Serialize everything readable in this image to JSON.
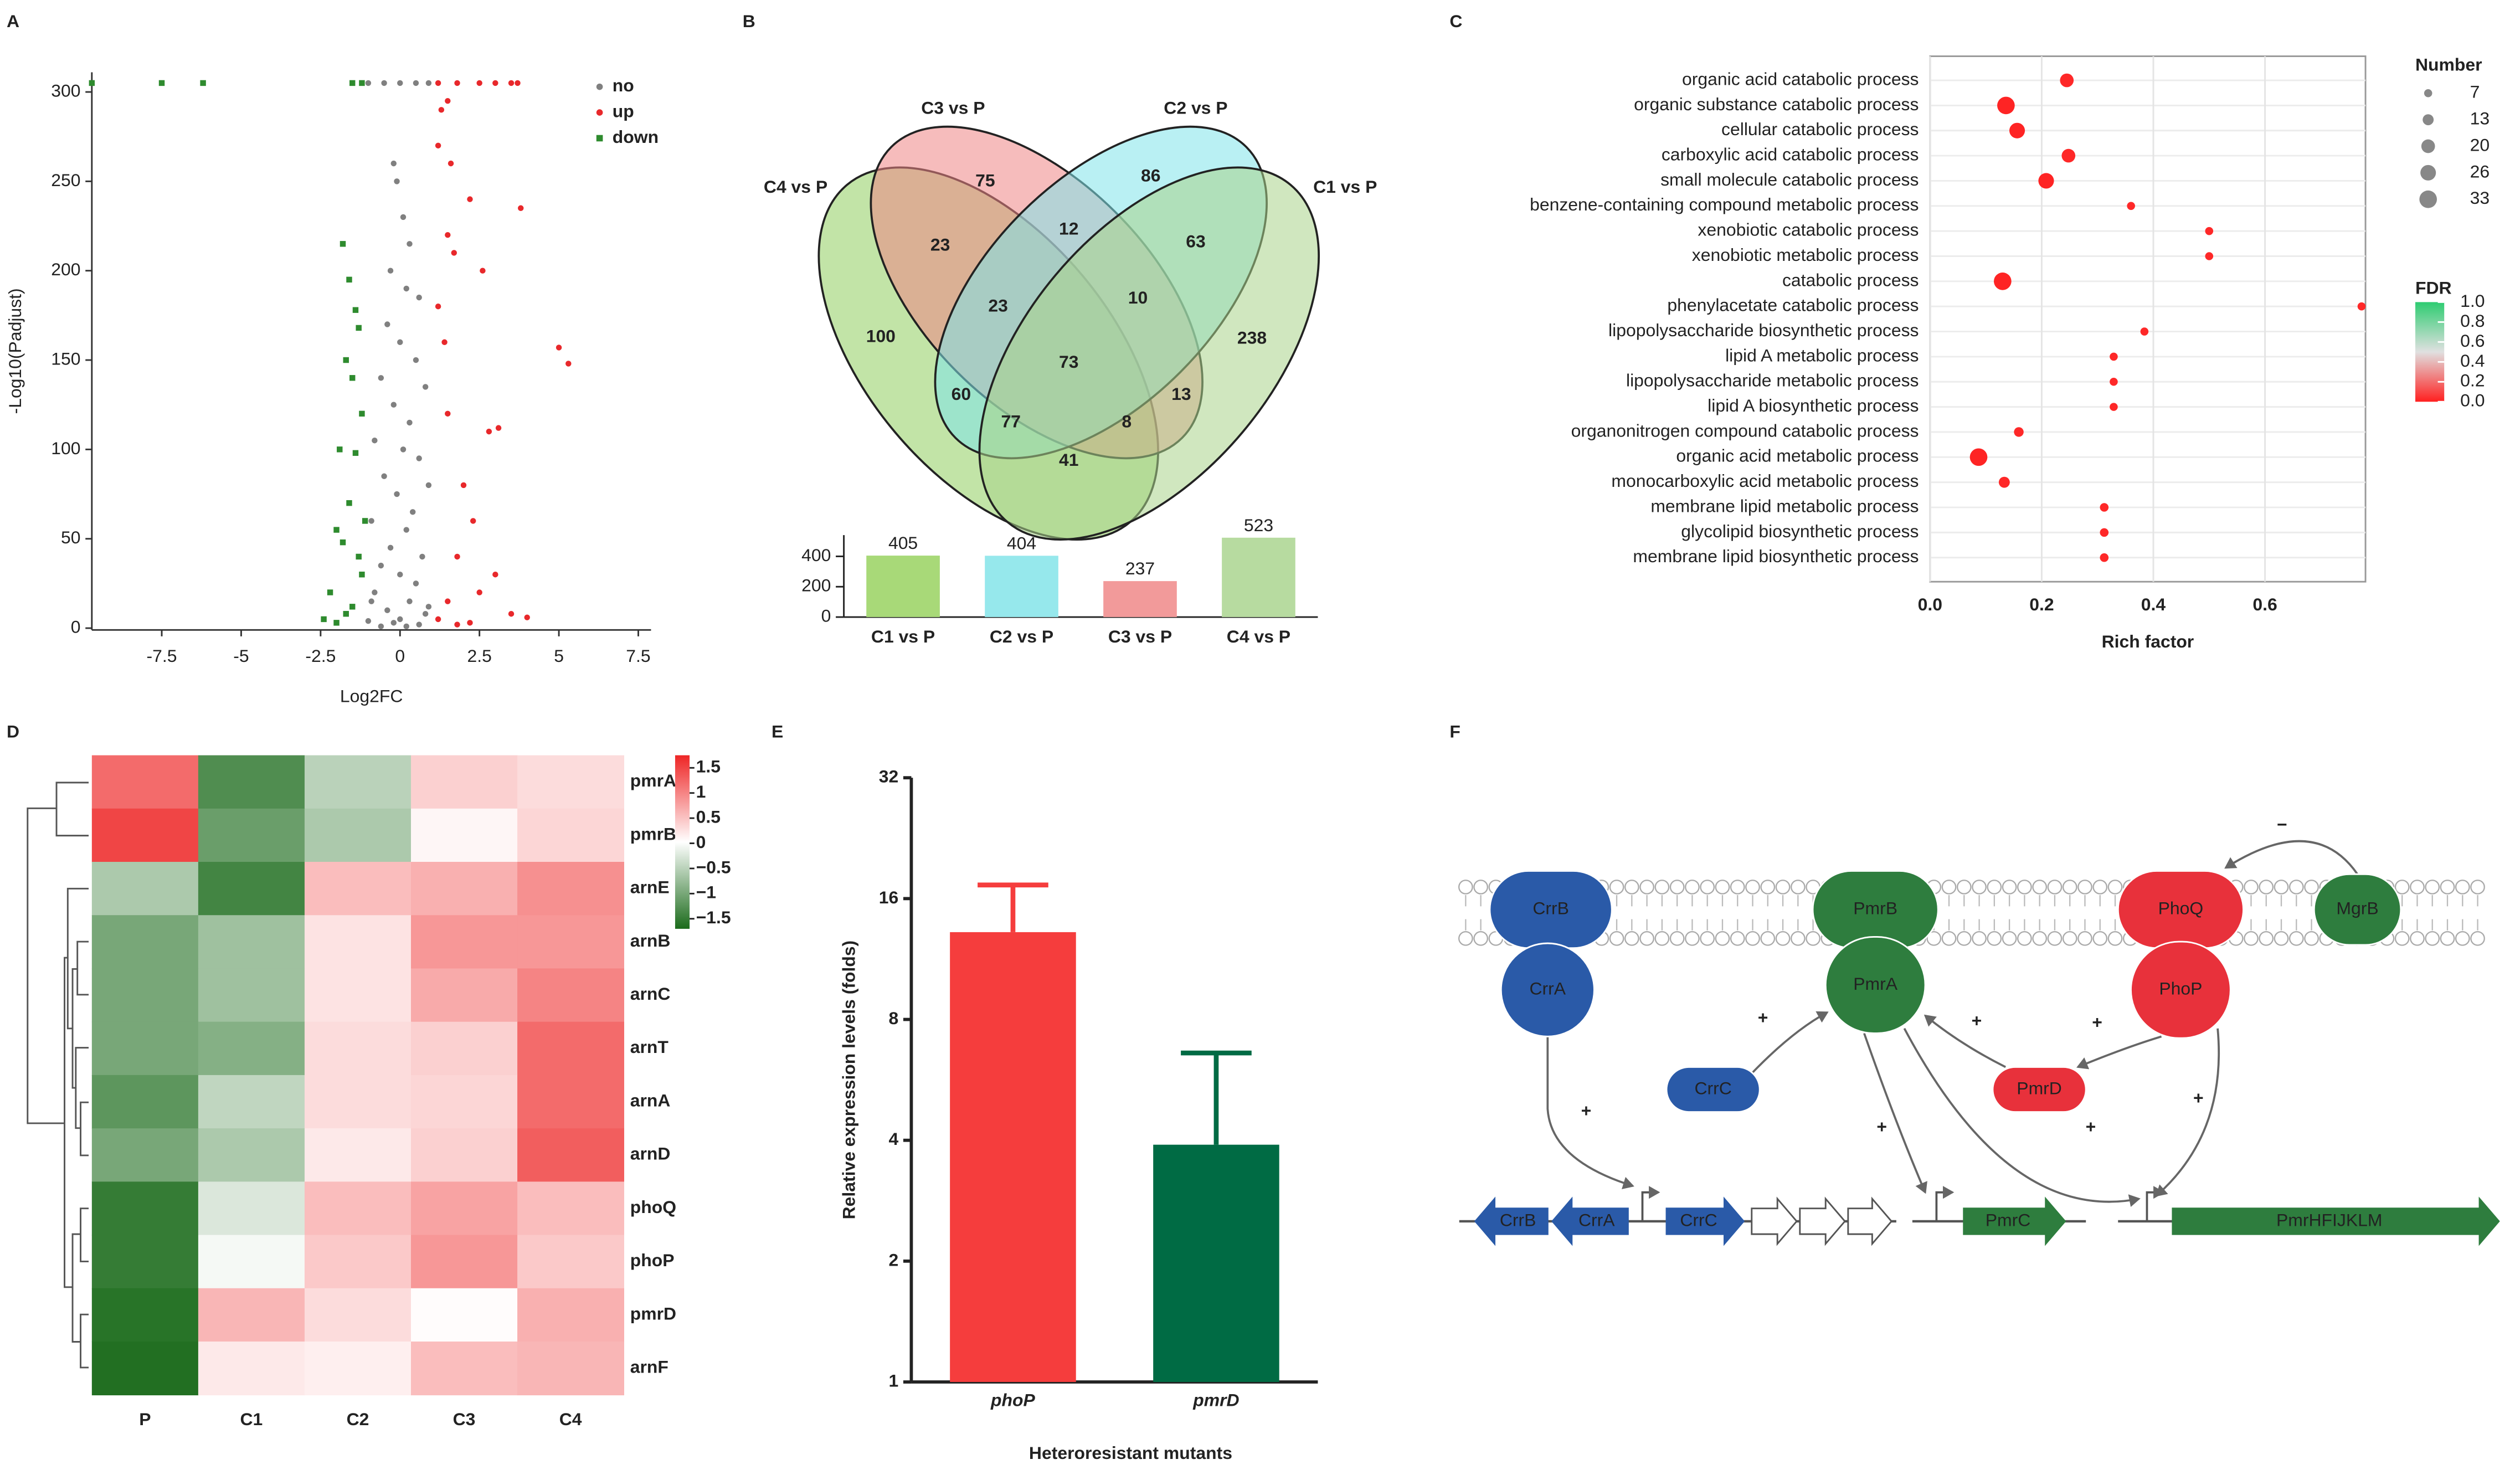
{
  "panels": [
    "A",
    "B",
    "C",
    "D",
    "E",
    "F"
  ],
  "chart_data": [
    {
      "type": "scatter",
      "xlabel": "Log2FC",
      "ylabel": "-Log10(Padjust)",
      "xlim": [
        -9.7,
        7.9
      ],
      "ylim": [
        -1,
        311
      ],
      "xticks": [
        -7.5,
        -5,
        -2.5,
        0,
        2.5,
        5,
        7.5
      ],
      "yticks": [
        0,
        50,
        100,
        150,
        200,
        250,
        300
      ],
      "legend": "upper right",
      "series": [
        {
          "name": "no",
          "color": "#808080",
          "marker": "circle",
          "x": [
            0,
            -0.5,
            0.5,
            -1,
            0.9,
            -0.2,
            -0.1,
            0.1,
            0.3,
            -0.3,
            0.2,
            0.6,
            -0.4,
            0,
            0.5,
            -0.6,
            0.8,
            -0.2,
            0.3,
            -0.8,
            0.1,
            0.6,
            -0.5,
            0.9,
            -0.1,
            0.4,
            -0.9,
            0.2,
            -0.3,
            0.7,
            -0.6,
            0,
            0.5,
            -0.8,
            0.3,
            -0.4,
            0.8,
            0,
            -0.2,
            0.6,
            -1.0,
            0.2,
            -0.6,
            0.9,
            -0.9
          ],
          "y": [
            305,
            305,
            305,
            305,
            305,
            260,
            250,
            230,
            215,
            200,
            190,
            185,
            170,
            160,
            150,
            140,
            135,
            125,
            115,
            105,
            100,
            95,
            85,
            80,
            75,
            65,
            60,
            55,
            45,
            40,
            35,
            30,
            25,
            20,
            15,
            10,
            8,
            5,
            3,
            2,
            4,
            1,
            1,
            12,
            15
          ]
        },
        {
          "name": "up",
          "color": "#e8282b",
          "marker": "circle",
          "x": [
            1.2,
            1.8,
            2.5,
            3.0,
            3.5,
            3.7,
            1.5,
            1.3,
            1.2,
            1.6,
            2.2,
            3.8,
            1.5,
            1.7,
            2.6,
            1.2,
            5.0,
            5.3,
            1.4,
            2.8,
            3.1,
            1.5,
            2.0,
            2.3,
            1.8,
            3.0,
            2.5,
            3.5,
            1.2,
            1.8,
            2.2,
            4.0,
            1.5
          ],
          "y": [
            305,
            305,
            305,
            305,
            305,
            305,
            295,
            290,
            270,
            260,
            240,
            235,
            220,
            210,
            200,
            180,
            157,
            148,
            160,
            110,
            112,
            120,
            80,
            60,
            40,
            30,
            20,
            8,
            5,
            2,
            3,
            6,
            15
          ]
        },
        {
          "name": "down",
          "color": "#2e8b2e",
          "marker": "square",
          "x": [
            -9.7,
            -7.5,
            -6.2,
            -1.5,
            -1.2,
            -1.8,
            -1.6,
            -1.4,
            -1.3,
            -1.7,
            -1.5,
            -1.2,
            -1.9,
            -1.4,
            -1.6,
            -2.0,
            -1.8,
            -1.3,
            -2.2,
            -2.4,
            -2.0,
            -1.7,
            -1.5,
            -1.2,
            -1.1
          ],
          "y": [
            305,
            305,
            305,
            305,
            305,
            215,
            195,
            178,
            168,
            150,
            140,
            120,
            100,
            98,
            70,
            55,
            48,
            40,
            20,
            5,
            3,
            8,
            12,
            30,
            60
          ]
        }
      ]
    },
    {
      "type": "venn",
      "sets": [
        {
          "name": "C4 vs P",
          "color": "#8fce5e"
        },
        {
          "name": "C3 vs P",
          "color": "#ef8585"
        },
        {
          "name": "C2 vs P",
          "color": "#7fe3ea"
        },
        {
          "name": "C1 vs P",
          "color": "#a9d38a"
        }
      ],
      "regions": [
        75,
        86,
        23,
        12,
        63,
        100,
        23,
        10,
        238,
        73,
        60,
        13,
        77,
        8,
        41
      ]
    },
    {
      "type": "bar",
      "categories": [
        "C1 vs P",
        "C2 vs P",
        "C3 vs P",
        "C4 vs P"
      ],
      "values": [
        405,
        404,
        237,
        523
      ],
      "colors": [
        "#a8d978",
        "#96e8ec",
        "#f29a9a",
        "#b7dba0"
      ],
      "ylim": [
        0,
        540
      ],
      "yticks": [
        0,
        200,
        400
      ],
      "show_values": true
    },
    {
      "type": "bubble",
      "categories": [
        "organic acid catabolic process",
        "organic substance catabolic process",
        "cellular catabolic process",
        "carboxylic acid catabolic process",
        "small molecule catabolic process",
        "benzene-containing compound metabolic process",
        "xenobiotic catabolic process",
        "xenobiotic metabolic process",
        "catabolic process",
        "phenylacetate catabolic process",
        "lipopolysaccharide biosynthetic process",
        "lipid A metabolic process",
        "lipopolysaccharide metabolic process",
        "lipid A biosynthetic process",
        "organonitrogen compound catabolic process",
        "organic acid metabolic process",
        "monocarboxylic acid metabolic process",
        "membrane lipid metabolic process",
        "glycolipid biosynthetic process",
        "membrane lipid biosynthetic process"
      ],
      "values": [
        0.245,
        0.136,
        0.156,
        0.248,
        0.208,
        0.36,
        0.5,
        0.5,
        0.13,
        0.773,
        0.384,
        0.329,
        0.329,
        0.329,
        0.159,
        0.087,
        0.133,
        0.312,
        0.312,
        0.312
      ],
      "sizes": [
        20,
        33,
        26,
        20,
        26,
        7,
        7,
        7,
        33,
        7,
        7,
        7,
        7,
        7,
        10,
        33,
        13,
        8,
        8,
        8
      ],
      "fdr": [
        0.02,
        0.01,
        0.01,
        0.02,
        0.01,
        0.02,
        0.02,
        0.02,
        0.01,
        0.02,
        0.02,
        0.02,
        0.02,
        0.02,
        0.02,
        0.01,
        0.02,
        0.02,
        0.02,
        0.02
      ],
      "xlim": [
        0,
        0.78
      ],
      "xticks": [
        {
          "value": 0,
          "label": "0.0"
        },
        0.2,
        0.4,
        0.6
      ],
      "xlabel": "Rich factor",
      "size_title": "Number",
      "size_legend": [
        7,
        13,
        20,
        26,
        33
      ],
      "color_title": "FDR",
      "clim": [
        0,
        1
      ],
      "color_scale": [
        "#ff2020",
        "#e0e0e0",
        "#2ecc71"
      ],
      "colorbar_ticks": [
        {
          "value": 1,
          "label": "1.0"
        },
        0.8,
        0.6,
        0.4,
        0.2,
        {
          "value": 0,
          "label": "0.0"
        }
      ]
    },
    {
      "type": "heatmap",
      "rows": [
        "pmrA",
        "pmrB",
        "arnE",
        "arnB",
        "arnC",
        "arnT",
        "arnA",
        "arnD",
        "phoQ",
        "phoP",
        "pmrD",
        "arnF"
      ],
      "columns": [
        "P",
        "C1",
        "C2",
        "C3",
        "C4"
      ],
      "values": [
        [
          1.2,
          -1.3,
          -0.5,
          0.4,
          0.3
        ],
        [
          1.5,
          -1.1,
          -0.6,
          0.1,
          0.35
        ],
        [
          -0.6,
          -1.4,
          0.55,
          0.65,
          0.9
        ],
        [
          -1.0,
          -0.7,
          0.25,
          0.85,
          0.85
        ],
        [
          -1.0,
          -0.7,
          0.25,
          0.7,
          1.0
        ],
        [
          -1.0,
          -0.9,
          0.3,
          0.4,
          1.2
        ],
        [
          -1.2,
          -0.45,
          0.3,
          0.35,
          1.2
        ],
        [
          -1.0,
          -0.6,
          0.2,
          0.4,
          1.3
        ],
        [
          -1.5,
          -0.25,
          0.55,
          0.75,
          0.55
        ],
        [
          -1.5,
          -0.05,
          0.45,
          0.85,
          0.45
        ],
        [
          -1.6,
          0.6,
          0.3,
          0.05,
          0.65
        ],
        [
          -1.65,
          0.2,
          0.15,
          0.55,
          0.6
        ]
      ],
      "clim": [
        -1.7,
        1.75
      ],
      "color_scale": [
        "#1b6b1b",
        "#ffffff",
        "#ee2525"
      ],
      "colorbar_ticks": [
        1.5,
        1,
        0.5,
        0,
        {
          "value": -0.5,
          "label": "−0.5"
        },
        {
          "value": -1,
          "label": "−1"
        },
        {
          "value": -1.5,
          "label": "−1.5"
        }
      ]
    },
    {
      "type": "bar",
      "categories": [
        "phoP",
        "pmrD"
      ],
      "values": [
        13.2,
        3.9
      ],
      "errors": [
        4.1,
        2.7
      ],
      "colors": [
        "#f53d3d",
        "#006b44"
      ],
      "ylim": [
        1,
        32
      ],
      "yscale": "log2",
      "yticks": [
        1,
        2,
        4,
        8,
        16,
        32
      ],
      "xlabel": "Heteroresistant mutants",
      "ylabel": "Relative expression levels (folds)",
      "category_style": "italic"
    }
  ],
  "diagram": {
    "proteins": [
      "CrrB",
      "CrrA",
      "PmrB",
      "PmrA",
      "PhoQ",
      "PhoP",
      "MgrB",
      "CrrC",
      "PmrD"
    ],
    "genes": [
      "CrrB",
      "CrrA",
      "CrrC",
      "PmrC",
      "PmrHFIJKLM"
    ],
    "signs": [
      "−",
      "+",
      "+",
      "+",
      "+",
      "+",
      "+",
      "+"
    ]
  }
}
